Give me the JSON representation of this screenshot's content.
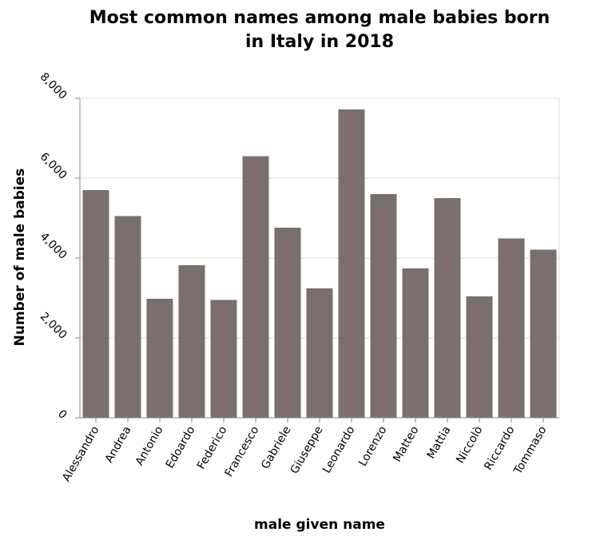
{
  "chart_data": {
    "type": "bar",
    "title_lines": [
      "Most common names among male babies born",
      "in Italy in 2018"
    ],
    "xlabel": "male given name",
    "ylabel": "Number of male babies",
    "categories": [
      "Alessandro",
      "Andrea",
      "Antonio",
      "Edoardo",
      "Federico",
      "Francesco",
      "Gabriele",
      "Giuseppe",
      "Leonardo",
      "Lorenzo",
      "Matteo",
      "Mattia",
      "Niccolò",
      "Riccardo",
      "Tommaso"
    ],
    "values": [
      5700,
      5050,
      2980,
      3820,
      2950,
      6550,
      4760,
      3240,
      7720,
      5600,
      3740,
      5500,
      3040,
      4490,
      4210
    ],
    "ylim": [
      0,
      8000
    ],
    "yticks": [
      0,
      2000,
      4000,
      6000,
      8000
    ],
    "ytick_labels": [
      "0",
      "2,000",
      "4,000",
      "6,000",
      "8,000"
    ],
    "grid": true,
    "bar_color": "#7a6f6d",
    "grid_color": "#dddddd",
    "axis_color": "#888888"
  }
}
